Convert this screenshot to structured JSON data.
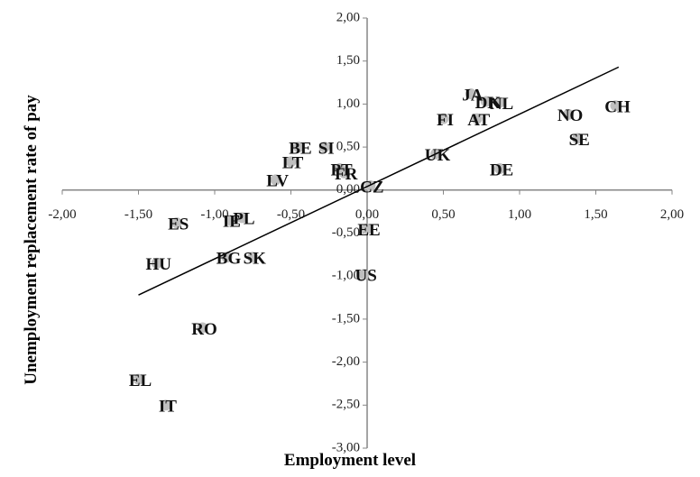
{
  "chart_data": {
    "type": "scatter",
    "xlabel": "Employment level",
    "ylabel": "Unemployment replacement rate of pay",
    "labels": [
      "JA",
      "DK",
      "NL",
      "FI",
      "AT",
      "NO",
      "CH",
      "SE",
      "UK",
      "DE",
      "BE",
      "SI",
      "LT",
      "PT",
      "FR",
      "LV",
      "CZ",
      "IE",
      "PL",
      "ES",
      "EE",
      "HU",
      "BG",
      "SK",
      "US",
      "RO",
      "EL",
      "IT"
    ],
    "x": [
      0.68,
      0.78,
      0.87,
      0.5,
      0.72,
      1.32,
      1.63,
      1.38,
      0.45,
      0.87,
      -0.45,
      -0.28,
      -0.5,
      -0.18,
      -0.15,
      -0.6,
      0.02,
      -0.9,
      -0.82,
      -1.25,
      0.0,
      -1.38,
      -0.92,
      -0.75,
      -0.02,
      -1.08,
      -1.5,
      -1.32
    ],
    "values": [
      1.12,
      1.03,
      1.02,
      0.83,
      0.83,
      0.88,
      0.98,
      0.6,
      0.42,
      0.25,
      0.5,
      0.5,
      0.33,
      0.25,
      0.2,
      0.12,
      0.05,
      -0.35,
      -0.32,
      -0.38,
      -0.45,
      -0.85,
      -0.78,
      -0.78,
      -0.98,
      -1.6,
      -2.2,
      -2.5
    ],
    "color": "#bfbfbf",
    "trendline": {
      "x": [
        -1.5,
        1.65
      ],
      "values": [
        -1.22,
        1.43
      ],
      "color": "#000000"
    },
    "xlim": [
      -2,
      2
    ],
    "ylim": [
      -3,
      2
    ],
    "xticks": [
      {
        "value": -2,
        "label": "-2,00"
      },
      {
        "value": -1.5,
        "label": "-1,50"
      },
      {
        "value": -1,
        "label": "-1,00"
      },
      {
        "value": -0.5,
        "label": "-0,50"
      },
      {
        "value": 0,
        "label": "0,00"
      },
      {
        "value": 0.5,
        "label": "0,50"
      },
      {
        "value": 1,
        "label": "1,00"
      },
      {
        "value": 1.5,
        "label": "1,50"
      },
      {
        "value": 2,
        "label": "2,00"
      }
    ],
    "yticks": [
      {
        "value": -3,
        "label": "-3,00"
      },
      {
        "value": -2.5,
        "label": "-2,50"
      },
      {
        "value": -2,
        "label": "-2,00"
      },
      {
        "value": -1.5,
        "label": "-1,50"
      },
      {
        "value": -1,
        "label": "-1,00"
      },
      {
        "value": -0.5,
        "label": "-0,50"
      },
      {
        "value": 0,
        "label": "0,00"
      },
      {
        "value": 0.5,
        "label": "0,50"
      },
      {
        "value": 1,
        "label": "1,00"
      },
      {
        "value": 1.5,
        "label": "1,50"
      },
      {
        "value": 2,
        "label": "2,00"
      }
    ]
  }
}
